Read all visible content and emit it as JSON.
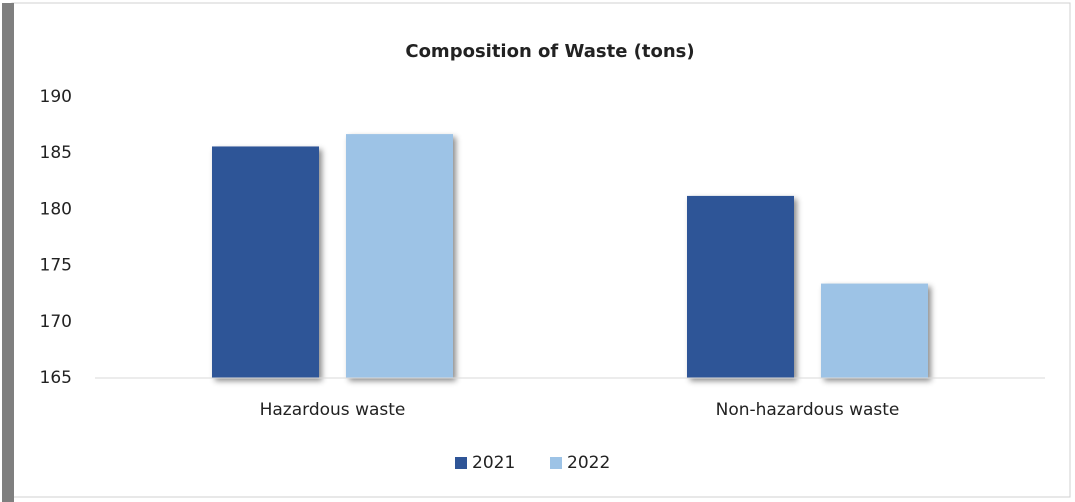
{
  "chart_data": {
    "type": "bar",
    "title": "Composition of Waste (tons)",
    "categories": [
      "Hazardous waste",
      "Non-hazardous waste"
    ],
    "series": [
      {
        "name": "2021",
        "color": "#2f5597",
        "values": [
          185.6,
          181.2
        ]
      },
      {
        "name": "2022",
        "color": "#9dc3e6",
        "values": [
          186.7,
          173.4
        ]
      }
    ],
    "ylim": [
      165,
      190
    ],
    "yticks": [
      165,
      170,
      175,
      180,
      185,
      190
    ],
    "grid": false,
    "legend": "bottom"
  }
}
